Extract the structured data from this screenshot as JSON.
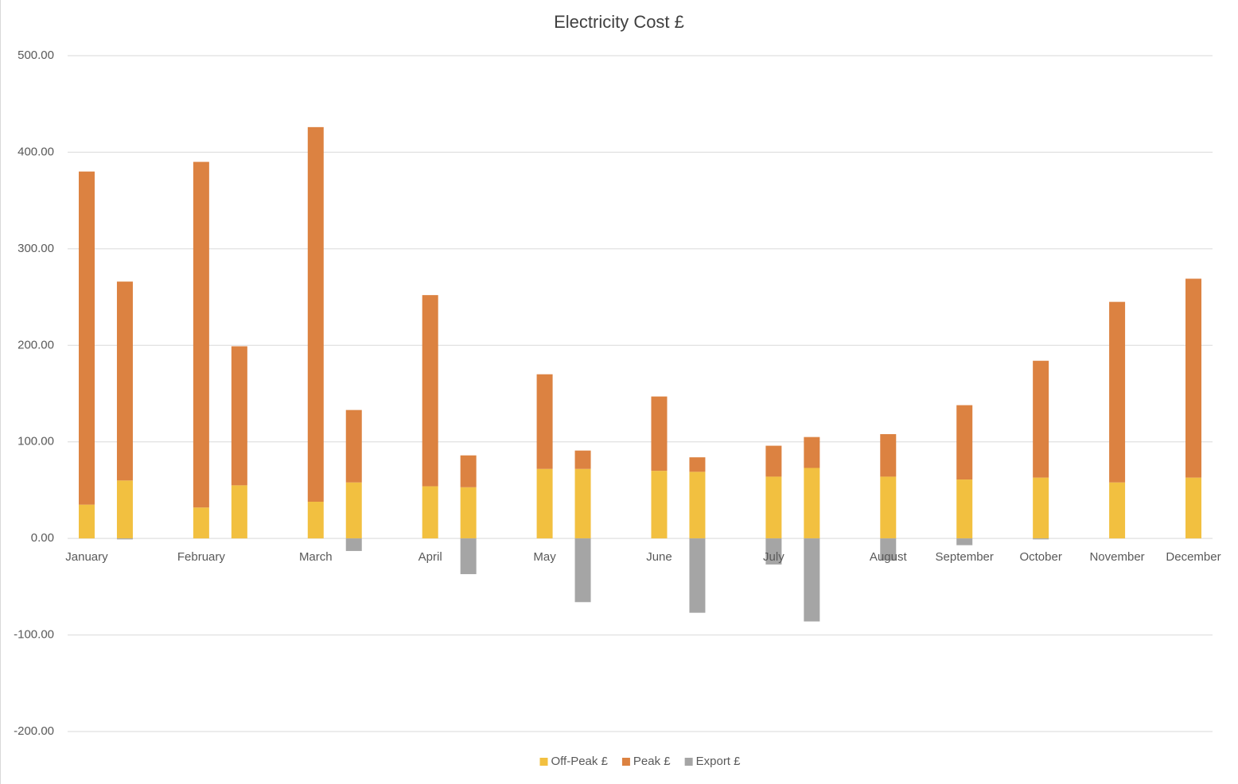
{
  "chart_data": {
    "type": "stacked_bar",
    "title": "Electricity Cost £",
    "categories": [
      "January",
      null,
      null,
      "February",
      null,
      null,
      "March",
      null,
      null,
      "April",
      null,
      null,
      "May",
      null,
      null,
      "June",
      null,
      null,
      "July",
      null,
      null,
      "August",
      null,
      "September",
      null,
      "October",
      null,
      "November",
      null,
      "December"
    ],
    "series": [
      {
        "name": "Off-Peak £",
        "color": "#F2C040",
        "values": [
          35,
          60,
          null,
          32,
          55,
          null,
          38,
          58,
          null,
          54,
          53,
          null,
          72,
          72,
          null,
          70,
          69,
          null,
          64,
          73,
          null,
          64,
          null,
          61,
          null,
          63,
          null,
          58,
          null,
          63
        ]
      },
      {
        "name": "Peak £",
        "color": "#DC8241",
        "values": [
          345,
          206,
          null,
          358,
          144,
          null,
          388,
          75,
          null,
          198,
          33,
          null,
          98,
          19,
          null,
          77,
          15,
          null,
          32,
          32,
          null,
          44,
          null,
          77,
          null,
          121,
          null,
          187,
          null,
          206
        ]
      },
      {
        "name": "Export £",
        "color": "#A5A5A5",
        "values": [
          0,
          -1,
          null,
          0,
          0,
          null,
          0,
          -13,
          null,
          0,
          -37,
          null,
          0,
          -66,
          null,
          0,
          -77,
          null,
          -27,
          -86,
          null,
          -23,
          null,
          -7,
          null,
          -1,
          null,
          0,
          null,
          0
        ]
      }
    ],
    "ylim": [
      -200,
      500
    ],
    "yticks": [
      {
        "value": -200,
        "label": "-200.00"
      },
      {
        "value": -100,
        "label": "-100.00"
      },
      {
        "value": 0,
        "label": "0.00"
      },
      {
        "value": 100,
        "label": "100.00"
      },
      {
        "value": 200,
        "label": "200.00"
      },
      {
        "value": 300,
        "label": "300.00"
      },
      {
        "value": 400,
        "label": "400.00"
      },
      {
        "value": 500,
        "label": "500.00"
      }
    ],
    "grid": true,
    "legend": "bottom"
  }
}
